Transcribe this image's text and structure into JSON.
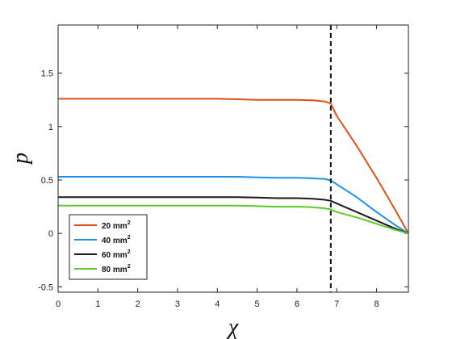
{
  "chart_data": {
    "type": "line",
    "xlabel": "χ",
    "ylabel": "p",
    "xlim": [
      0,
      8.8
    ],
    "ylim": [
      -0.55,
      1.95
    ],
    "xticks": [
      "0",
      "1",
      "2",
      "3",
      "4",
      "5",
      "6",
      "7",
      "8"
    ],
    "yticks": [
      "-0.5",
      "0",
      "0.5",
      "1",
      "1.5"
    ],
    "vline_x": 6.85,
    "legend_position": "bottom-left",
    "series": [
      {
        "name": "20 mm",
        "unit_sup": "2",
        "color": "#d95319",
        "x": [
          0,
          1,
          2,
          3,
          4,
          4.5,
          5,
          5.5,
          6,
          6.4,
          6.7,
          6.85,
          7.0,
          7.5,
          8.0,
          8.5,
          8.8
        ],
        "y": [
          1.26,
          1.26,
          1.26,
          1.26,
          1.26,
          1.255,
          1.25,
          1.25,
          1.25,
          1.245,
          1.235,
          1.215,
          1.1,
          0.82,
          0.52,
          0.2,
          0.0
        ]
      },
      {
        "name": "40 mm",
        "unit_sup": "2",
        "color": "#1e90e8",
        "x": [
          0,
          1,
          2,
          3,
          4,
          4.5,
          5,
          5.5,
          6,
          6.4,
          6.7,
          6.85,
          7.0,
          7.5,
          8.0,
          8.5,
          8.8
        ],
        "y": [
          0.53,
          0.53,
          0.53,
          0.53,
          0.53,
          0.53,
          0.525,
          0.52,
          0.52,
          0.515,
          0.51,
          0.495,
          0.46,
          0.34,
          0.2,
          0.07,
          0.0
        ]
      },
      {
        "name": "60 mm",
        "unit_sup": "2",
        "color": "#1a1a1a",
        "x": [
          0,
          1,
          2,
          3,
          4,
          4.5,
          5,
          5.5,
          6,
          6.4,
          6.7,
          6.85,
          7.0,
          7.5,
          8.0,
          8.5,
          8.8
        ],
        "y": [
          0.34,
          0.34,
          0.34,
          0.34,
          0.34,
          0.34,
          0.335,
          0.33,
          0.33,
          0.325,
          0.315,
          0.305,
          0.28,
          0.2,
          0.12,
          0.04,
          0.0
        ]
      },
      {
        "name": "80 mm",
        "unit_sup": "2",
        "color": "#5fc82a",
        "x": [
          0,
          1,
          2,
          3,
          4,
          4.5,
          5,
          5.5,
          6,
          6.4,
          6.7,
          6.85,
          7.0,
          7.5,
          8.0,
          8.5,
          8.8
        ],
        "y": [
          0.26,
          0.26,
          0.26,
          0.26,
          0.26,
          0.26,
          0.255,
          0.25,
          0.25,
          0.245,
          0.235,
          0.225,
          0.2,
          0.15,
          0.09,
          0.03,
          0.0
        ]
      }
    ]
  }
}
